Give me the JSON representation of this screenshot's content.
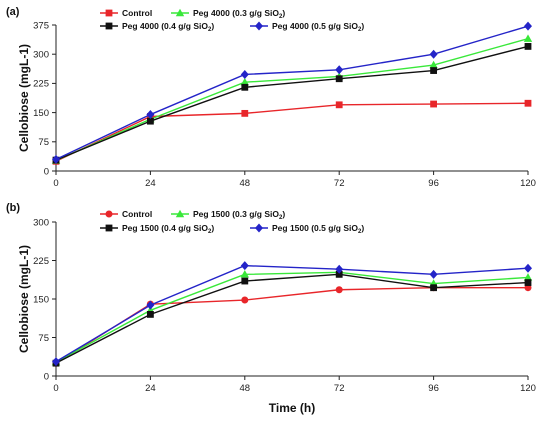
{
  "chart_data": [
    {
      "type": "line",
      "panel_label": "(a)",
      "xlabel": "",
      "ylabel": "Cellobiose (mgL-1)",
      "x": [
        0,
        24,
        48,
        72,
        96,
        120
      ],
      "xlim": [
        0,
        120
      ],
      "ylim": [
        0,
        375
      ],
      "yticks": [
        0,
        75,
        150,
        225,
        300,
        375
      ],
      "xticks": [
        0,
        24,
        48,
        72,
        96,
        120
      ],
      "grid": false,
      "legend_position": "top",
      "series": [
        {
          "name": "Control",
          "name_sub": "",
          "name_tail": "",
          "color": "#e8262a",
          "marker": "square",
          "values": [
            25,
            140,
            148,
            170,
            172,
            174
          ]
        },
        {
          "name": "Peg 4000 (0.3 g/g SiO",
          "name_sub": "2",
          "name_tail": ")",
          "color": "#39e83a",
          "marker": "triangle",
          "values": [
            27,
            133,
            228,
            243,
            272,
            340
          ]
        },
        {
          "name": "Peg 4000 (0.4 g/g SiO",
          "name_sub": "2",
          "name_tail": ")",
          "color": "#111111",
          "marker": "square",
          "values": [
            28,
            128,
            215,
            237,
            258,
            320
          ]
        },
        {
          "name": "Peg 4000 (0.5 g/g SiO",
          "name_sub": "2",
          "name_tail": ")",
          "color": "#2424c8",
          "marker": "diamond",
          "values": [
            30,
            145,
            248,
            260,
            300,
            372
          ]
        }
      ]
    },
    {
      "type": "line",
      "panel_label": "(b)",
      "xlabel": "Time (h)",
      "ylabel": "Cellobiose (mgL-1)",
      "x": [
        0,
        24,
        48,
        72,
        96,
        120
      ],
      "xlim": [
        0,
        120
      ],
      "ylim": [
        0,
        300
      ],
      "yticks": [
        0,
        75,
        150,
        225,
        300
      ],
      "xticks": [
        0,
        24,
        48,
        72,
        96,
        120
      ],
      "grid": false,
      "legend_position": "top",
      "series": [
        {
          "name": "Control",
          "name_sub": "",
          "name_tail": "",
          "color": "#e8262a",
          "marker": "circle",
          "values": [
            25,
            140,
            148,
            168,
            172,
            172
          ]
        },
        {
          "name": "Peg 1500 (0.3 g/g SiO",
          "name_sub": "2",
          "name_tail": ")",
          "color": "#39e83a",
          "marker": "triangle",
          "values": [
            27,
            128,
            198,
            202,
            180,
            192
          ]
        },
        {
          "name": "Peg 1500 (0.4 g/g SiO",
          "name_sub": "2",
          "name_tail": ")",
          "color": "#111111",
          "marker": "square",
          "values": [
            25,
            120,
            185,
            198,
            172,
            182
          ]
        },
        {
          "name": "Peg 1500 (0.5 g/g SiO",
          "name_sub": "2",
          "name_tail": ")",
          "color": "#2424c8",
          "marker": "diamond",
          "values": [
            28,
            138,
            215,
            208,
            198,
            210
          ]
        }
      ]
    }
  ]
}
